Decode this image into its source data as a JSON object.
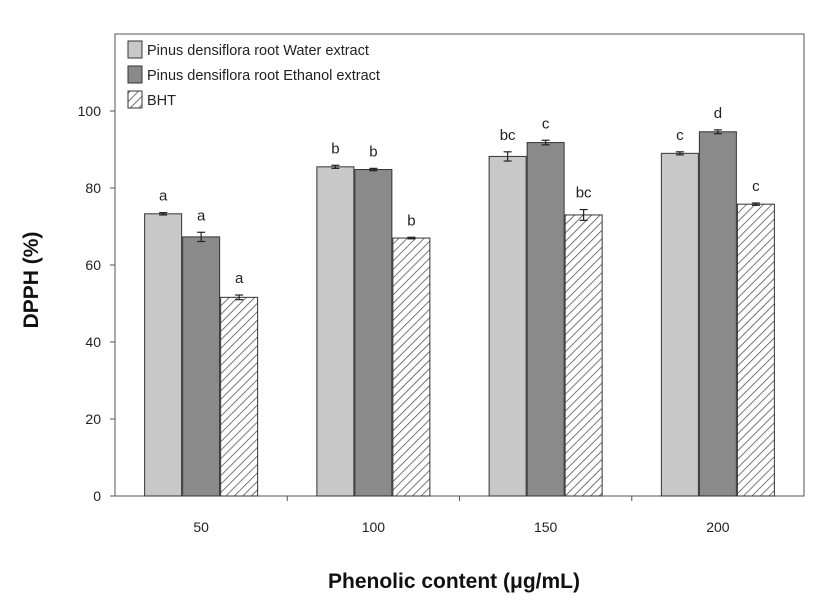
{
  "chart_data": {
    "type": "bar",
    "xlabel": "Phenolic content (μg/mL)",
    "ylabel": "DPPH (%)",
    "ylim": [
      0,
      120
    ],
    "yticks": [
      0,
      20,
      40,
      60,
      80,
      100
    ],
    "categories": [
      "50",
      "100",
      "150",
      "200"
    ],
    "legend_position": "top-left",
    "grid": false,
    "series": [
      {
        "name": "Pinus densiflora root Water extract",
        "fill": "#c8c8c8",
        "pattern": "solid",
        "values": [
          73.3,
          85.5,
          88.2,
          89.0
        ],
        "errors": [
          0.3,
          0.4,
          1.2,
          0.4
        ],
        "significance": [
          "a",
          "b",
          "bc",
          "c"
        ]
      },
      {
        "name": "Pinus densiflora root Ethanol extract",
        "fill": "#8a8a8a",
        "pattern": "solid",
        "values": [
          67.3,
          84.8,
          91.8,
          94.6
        ],
        "errors": [
          1.2,
          0.3,
          0.6,
          0.5
        ],
        "significance": [
          "a",
          "b",
          "c",
          "d"
        ]
      },
      {
        "name": "BHT",
        "fill": "#ffffff",
        "pattern": "hatch",
        "values": [
          51.6,
          67.0,
          73.0,
          75.8
        ],
        "errors": [
          0.6,
          0.2,
          1.4,
          0.3
        ],
        "significance": [
          "a",
          "b",
          "bc",
          "c"
        ]
      }
    ]
  }
}
